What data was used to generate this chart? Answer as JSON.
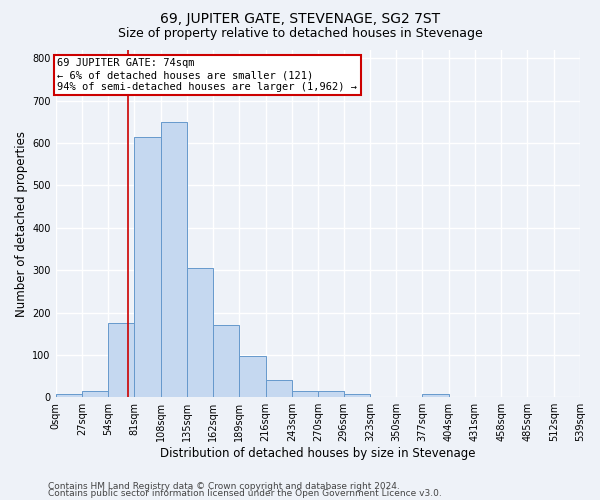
{
  "title": "69, JUPITER GATE, STEVENAGE, SG2 7ST",
  "subtitle": "Size of property relative to detached houses in Stevenage",
  "xlabel": "Distribution of detached houses by size in Stevenage",
  "ylabel": "Number of detached properties",
  "bin_edges": [
    0,
    27,
    54,
    81,
    108,
    135,
    162,
    189,
    216,
    243,
    270,
    296,
    323,
    350,
    377,
    404,
    431,
    458,
    485,
    512,
    539
  ],
  "bar_heights": [
    8,
    14,
    175,
    615,
    650,
    305,
    170,
    98,
    40,
    15,
    15,
    8,
    0,
    0,
    8,
    0,
    0,
    0,
    0,
    0
  ],
  "bar_color": "#c5d8f0",
  "bar_edge_color": "#6699cc",
  "vline_x": 74,
  "vline_color": "#cc0000",
  "annotation_text": "69 JUPITER GATE: 74sqm\n← 6% of detached houses are smaller (121)\n94% of semi-detached houses are larger (1,962) →",
  "annotation_box_color": "white",
  "annotation_box_edge": "#cc0000",
  "ylim": [
    0,
    820
  ],
  "yticks": [
    0,
    100,
    200,
    300,
    400,
    500,
    600,
    700,
    800
  ],
  "footer_line1": "Contains HM Land Registry data © Crown copyright and database right 2024.",
  "footer_line2": "Contains public sector information licensed under the Open Government Licence v3.0.",
  "bg_color": "#eef2f8",
  "plot_bg_color": "#eef2f8",
  "grid_color": "white",
  "title_fontsize": 10,
  "subtitle_fontsize": 9,
  "axis_label_fontsize": 8.5,
  "tick_fontsize": 7,
  "footer_fontsize": 6.5,
  "ann_fontsize": 7.5
}
